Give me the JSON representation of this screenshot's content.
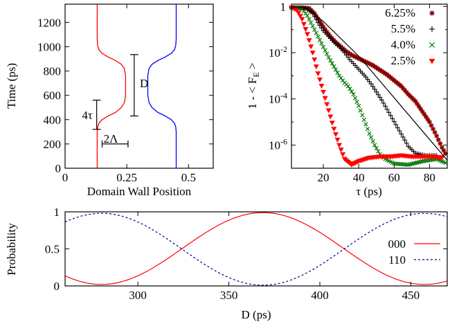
{
  "chart_data": [
    {
      "type": "line",
      "xlabel": "Domain Wall Position",
      "ylabel": "Time (ps)",
      "xlim": [
        0,
        0.6
      ],
      "ylim": [
        0,
        1350
      ],
      "xticks": [
        "0",
        "0.25",
        "0.5"
      ],
      "xtick_values": [
        0,
        0.25,
        0.5
      ],
      "yticks": [
        "0",
        "200",
        "400",
        "600",
        "800",
        "1000",
        "1200"
      ],
      "ytick_values": [
        0,
        200,
        400,
        600,
        800,
        1000,
        1200
      ],
      "grid": false,
      "series": [
        {
          "color": "#ff0000",
          "x": [
            0.13,
            0.13,
            0.132,
            0.137,
            0.15,
            0.175,
            0.205,
            0.228,
            0.24,
            0.245,
            0.245,
            0.245,
            0.24,
            0.228,
            0.205,
            0.175,
            0.15,
            0.137,
            0.132,
            0.13,
            0.13
          ],
          "y": [
            0,
            300,
            340,
            370,
            400,
            430,
            460,
            500,
            540,
            600,
            680,
            760,
            820,
            855,
            885,
            915,
            945,
            975,
            1010,
            1060,
            1350
          ]
        },
        {
          "color": "#0000ff",
          "x": [
            0.45,
            0.45,
            0.448,
            0.443,
            0.43,
            0.405,
            0.375,
            0.352,
            0.34,
            0.335,
            0.335,
            0.335,
            0.34,
            0.352,
            0.375,
            0.405,
            0.43,
            0.443,
            0.448,
            0.45,
            0.45
          ],
          "y": [
            0,
            300,
            340,
            370,
            400,
            430,
            460,
            500,
            540,
            600,
            680,
            760,
            820,
            855,
            885,
            915,
            945,
            975,
            1010,
            1060,
            1350
          ]
        }
      ],
      "annotations": [
        {
          "text": "D",
          "x": 0.32,
          "y": 700
        },
        {
          "text": "4τ",
          "x": 0.09,
          "y": 440
        },
        {
          "text": "2Λ",
          "x": 0.185,
          "y": 245
        }
      ],
      "annotation_marks": {
        "D_bar": {
          "x": 0.28,
          "y0": 430,
          "y1": 935
        },
        "tau_bar": {
          "x": 0.128,
          "y0": 320,
          "y1": 560
        },
        "lambda_bar": {
          "y": 200,
          "x0": 0.15,
          "x1": 0.255
        }
      }
    },
    {
      "type": "scatter",
      "xlabel": "τ (ps)",
      "ylabel": "1 - < F_E >",
      "ylabel_main": "1 - < F",
      "ylabel_sub": "E",
      "ylabel_end": " >",
      "yscale": "log",
      "xlim": [
        2,
        90
      ],
      "ylim_exp": [
        -7.0,
        0.1
      ],
      "xticks": [
        "20",
        "40",
        "60",
        "80"
      ],
      "xtick_values": [
        20,
        40,
        60,
        80
      ],
      "yticks": [
        {
          "base": "1",
          "exp": "",
          "value": 0
        },
        {
          "base": "10",
          "exp": "-2",
          "value": -2
        },
        {
          "base": "10",
          "exp": "-4",
          "value": -4
        },
        {
          "base": "10",
          "exp": "-6",
          "value": -6
        }
      ],
      "legend_position": "top-right",
      "series": [
        {
          "name": "6.25%",
          "color": "#8b0000",
          "marker": "star",
          "points": [
            [
              2,
              -0.05
            ],
            [
              8,
              -0.05
            ],
            [
              12,
              -0.08
            ],
            [
              15,
              -0.3
            ],
            [
              18,
              -0.65
            ],
            [
              21,
              -1.0
            ],
            [
              24,
              -1.3
            ],
            [
              27,
              -1.55
            ],
            [
              30,
              -1.75
            ],
            [
              33,
              -1.95
            ],
            [
              36,
              -2.1
            ],
            [
              40,
              -2.25
            ],
            [
              44,
              -2.4
            ],
            [
              48,
              -2.55
            ],
            [
              52,
              -2.75
            ],
            [
              56,
              -2.95
            ],
            [
              60,
              -3.2
            ],
            [
              64,
              -3.45
            ],
            [
              68,
              -3.8
            ],
            [
              72,
              -4.1
            ],
            [
              76,
              -4.55
            ],
            [
              80,
              -5.0
            ],
            [
              84,
              -5.6
            ],
            [
              87,
              -6.1
            ],
            [
              90,
              -6.5
            ]
          ]
        },
        {
          "name": "5.5%",
          "color": "#000000",
          "marker": "plus",
          "points": [
            [
              2,
              -0.05
            ],
            [
              10,
              -0.08
            ],
            [
              14,
              -0.3
            ],
            [
              17,
              -0.7
            ],
            [
              20,
              -1.05
            ],
            [
              23,
              -1.3
            ],
            [
              26,
              -1.55
            ],
            [
              29,
              -1.75
            ],
            [
              32,
              -2.0
            ],
            [
              35,
              -2.3
            ],
            [
              38,
              -2.55
            ],
            [
              41,
              -2.8
            ],
            [
              44,
              -3.05
            ],
            [
              47,
              -3.35
            ],
            [
              50,
              -3.7
            ],
            [
              53,
              -4.05
            ],
            [
              56,
              -4.45
            ],
            [
              59,
              -4.85
            ],
            [
              62,
              -5.25
            ],
            [
              65,
              -5.65
            ],
            [
              68,
              -6.05
            ],
            [
              72,
              -6.35
            ],
            [
              78,
              -6.45
            ],
            [
              85,
              -6.45
            ]
          ]
        },
        {
          "name": "4.0%",
          "color": "#007700",
          "marker": "cross",
          "points": [
            [
              2,
              -0.05
            ],
            [
              8,
              -0.1
            ],
            [
              11,
              -0.4
            ],
            [
              14,
              -0.85
            ],
            [
              17,
              -1.3
            ],
            [
              20,
              -1.75
            ],
            [
              23,
              -2.2
            ],
            [
              26,
              -2.6
            ],
            [
              29,
              -3.0
            ],
            [
              32,
              -3.3
            ],
            [
              34,
              -3.45
            ],
            [
              37,
              -3.8
            ],
            [
              40,
              -4.3
            ],
            [
              43,
              -4.9
            ],
            [
              46,
              -5.5
            ],
            [
              49,
              -6.0
            ],
            [
              52,
              -6.4
            ],
            [
              55,
              -6.6
            ],
            [
              60,
              -6.8
            ],
            [
              68,
              -6.85
            ],
            [
              76,
              -6.7
            ],
            [
              84,
              -6.6
            ],
            [
              90,
              -6.8
            ]
          ]
        },
        {
          "name": "2.5%",
          "color": "#ff0000",
          "marker": "triangle",
          "points": [
            [
              2,
              -0.05
            ],
            [
              5,
              -0.15
            ],
            [
              8,
              -0.55
            ],
            [
              11,
              -1.2
            ],
            [
              14,
              -2.0
            ],
            [
              17,
              -2.9
            ],
            [
              20,
              -3.7
            ],
            [
              23,
              -4.5
            ],
            [
              26,
              -5.3
            ],
            [
              29,
              -6.0
            ],
            [
              32,
              -6.6
            ],
            [
              36,
              -6.85
            ],
            [
              40,
              -6.7
            ],
            [
              46,
              -6.55
            ],
            [
              52,
              -6.5
            ],
            [
              58,
              -6.5
            ],
            [
              64,
              -6.45
            ],
            [
              70,
              -6.5
            ],
            [
              76,
              -6.5
            ],
            [
              82,
              -6.5
            ],
            [
              88,
              -6.55
            ]
          ]
        }
      ],
      "fit_line": {
        "x": [
          2,
          10,
          20,
          40,
          60,
          80,
          90
        ],
        "y": [
          -0.05,
          -0.05,
          -0.65,
          -2.15,
          -3.95,
          -5.75,
          -6.65
        ]
      }
    },
    {
      "type": "line",
      "xlabel": "D (ps)",
      "ylabel": "Probability",
      "xlim": [
        260,
        470
      ],
      "ylim": [
        0,
        1
      ],
      "xticks": [
        "300",
        "350",
        "400",
        "450"
      ],
      "xtick_values": [
        300,
        350,
        400,
        450
      ],
      "yticks": [
        "0",
        "0.5",
        "1"
      ],
      "ytick_values": [
        0,
        0.5,
        1
      ],
      "legend_position": "right",
      "series": [
        {
          "name": "000",
          "color": "#ff0000",
          "dash": "solid",
          "center": 368.75,
          "period": 177.5,
          "amp": 0.485,
          "offset": 0.505,
          "phase_sign": 1
        },
        {
          "name": "110",
          "color": "#000080",
          "dash": "dashed",
          "center": 368.75,
          "period": 177.5,
          "amp": 0.485,
          "offset": 0.495,
          "phase_sign": -1
        }
      ]
    }
  ]
}
